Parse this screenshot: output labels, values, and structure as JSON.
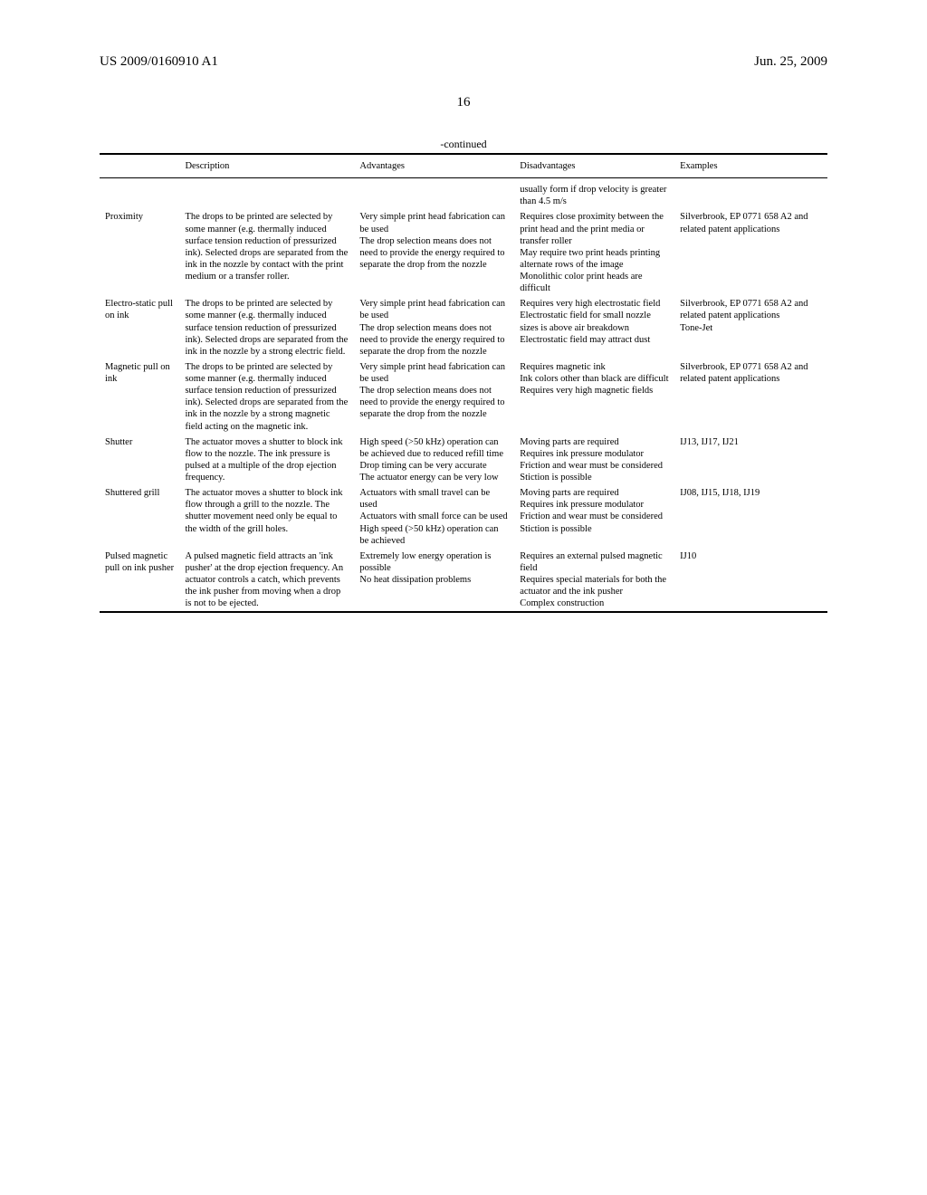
{
  "header": {
    "pub_number": "US 2009/0160910 A1",
    "date": "Jun. 25, 2009"
  },
  "page_number": "16",
  "continued_label": "-continued",
  "columns": {
    "name": "",
    "description": "Description",
    "advantages": "Advantages",
    "disadvantages": "Disadvantages",
    "examples": "Examples"
  },
  "prelude_disadvantage": "usually form if drop velocity is greater than 4.5 m/s",
  "rows": [
    {
      "name": "Proximity",
      "description": "The drops to be printed are selected by some manner (e.g. thermally induced surface tension reduction of pressurized ink). Selected drops are separated from the ink in the nozzle by contact with the print medium or a transfer roller.",
      "advantages": "Very simple print head fabrication can be used\nThe drop selection means does not need to provide the energy required to separate the drop from the nozzle",
      "disadvantages": "Requires close proximity between the print head and the print media or transfer roller\nMay require two print heads printing alternate rows of the image\nMonolithic color print heads are difficult",
      "examples": "Silverbrook, EP 0771 658 A2 and related patent applications"
    },
    {
      "name": "Electro-static pull on ink",
      "description": "The drops to be printed are selected by some manner (e.g. thermally induced surface tension reduction of pressurized ink). Selected drops are separated from the ink in the nozzle by a strong electric field.",
      "advantages": "Very simple print head fabrication can be used\nThe drop selection means does not need to provide the energy required to separate the drop from the nozzle",
      "disadvantages": "Requires very high electrostatic field\nElectrostatic field for small nozzle sizes is above air breakdown\nElectrostatic field may attract dust",
      "examples": "Silverbrook, EP 0771 658 A2 and related patent applications\nTone-Jet"
    },
    {
      "name": "Magnetic pull on ink",
      "description": "The drops to be printed are selected by some manner (e.g. thermally induced surface tension reduction of pressurized ink). Selected drops are separated from the ink in the nozzle by a strong magnetic field acting on the magnetic ink.",
      "advantages": "Very simple print head fabrication can be used\nThe drop selection means does not need to provide the energy required to separate the drop from the nozzle",
      "disadvantages": "Requires magnetic ink\nInk colors other than black are difficult\nRequires very high magnetic fields",
      "examples": "Silverbrook, EP 0771 658 A2 and related patent applications"
    },
    {
      "name": "Shutter",
      "description": "The actuator moves a shutter to block ink flow to the nozzle. The ink pressure is pulsed at a multiple of the drop ejection frequency.",
      "advantages": "High speed (>50 kHz) operation can be achieved due to reduced refill time\nDrop timing can be very accurate\nThe actuator energy can be very low",
      "disadvantages": "Moving parts are required\nRequires ink pressure modulator\nFriction and wear must be considered\nStiction is possible",
      "examples": "IJ13, IJ17, IJ21"
    },
    {
      "name": "Shuttered grill",
      "description": "The actuator moves a shutter to block ink flow through a grill to the nozzle. The shutter movement need only be equal to the width of the grill holes.",
      "advantages": "Actuators with small travel can be used\nActuators with small force can be used\nHigh speed (>50 kHz) operation can be achieved",
      "disadvantages": "Moving parts are required\nRequires ink pressure modulator\nFriction and wear must be considered\nStiction is possible",
      "examples": "IJ08, IJ15, IJ18, IJ19"
    },
    {
      "name": "Pulsed magnetic pull on ink pusher",
      "description": "A pulsed magnetic field attracts an 'ink pusher' at the drop ejection frequency. An actuator controls a catch, which prevents the ink pusher from moving when a drop is not to be ejected.",
      "advantages": "Extremely low energy operation is possible\nNo heat dissipation problems",
      "disadvantages": "Requires an external pulsed magnetic field\nRequires special materials for both the actuator and the ink pusher\nComplex construction",
      "examples": "IJ10"
    }
  ]
}
